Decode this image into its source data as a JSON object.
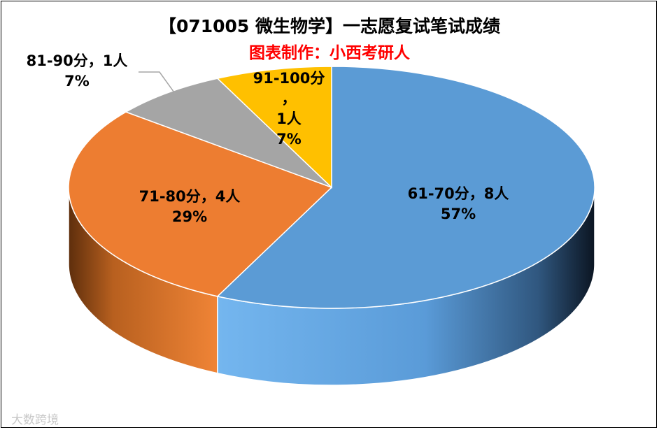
{
  "title": "【071005 微生物学】一志愿复试笔试成绩",
  "subtitle": "图表制作：小西考研人",
  "watermark": "大数跨境",
  "chart_data": {
    "type": "pie",
    "title": "【071005 微生物学】一志愿复试笔试成绩",
    "subtitle": "图表制作：小西考研人",
    "slices": [
      {
        "category": "61-70分",
        "value": 8,
        "percent": "57%",
        "label": "61-70分，8人",
        "color": "#5b9bd5"
      },
      {
        "category": "71-80分",
        "value": 4,
        "percent": "29%",
        "label": "71-80分，4人",
        "color": "#ed7d31"
      },
      {
        "category": "81-90分",
        "value": 1,
        "percent": "7%",
        "label": "81-90分，1人",
        "color": "#a5a5a5"
      },
      {
        "category": "91-100分",
        "value": 1,
        "percent": "7%",
        "label": "91-100分，1人",
        "color": "#ffc000"
      }
    ],
    "style": "3d-pie",
    "legend": "none"
  }
}
